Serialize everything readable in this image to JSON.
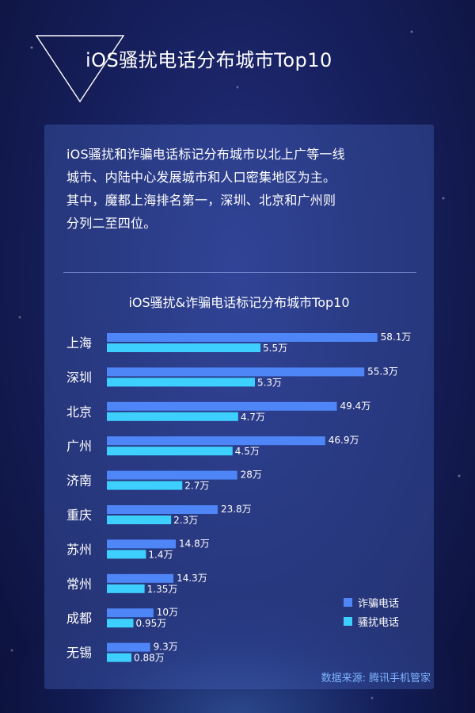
{
  "page": {
    "title": "iOS骚扰电话分布城市Top10",
    "intro_lines": [
      "iOS骚扰和诈骗电话标记分布城市以北上广等一线",
      "城市、内陆中心发展城市和人口密集地区为主。",
      "其中，魔都上海排名第一，深圳、北京和广州则",
      "分列二至四位。"
    ],
    "source_label": "数据来源:",
    "source_name": "腾讯手机管家"
  },
  "colors": {
    "fraud": "#4f86f7",
    "harass": "#3dd0ff",
    "background": "#17205e",
    "card": "#3b56a8"
  },
  "chart_data": {
    "type": "bar",
    "orientation": "horizontal",
    "title": "iOS骚扰&诈骗电话标记分布城市Top10",
    "categories": [
      "上海",
      "深圳",
      "北京",
      "广州",
      "济南",
      "重庆",
      "苏州",
      "常州",
      "成都",
      "无锡"
    ],
    "series": [
      {
        "name": "诈骗电话",
        "values": [
          58.1,
          55.3,
          49.4,
          46.9,
          28,
          23.8,
          14.8,
          14.3,
          10,
          9.3
        ],
        "labels": [
          "58.1万",
          "55.3万",
          "49.4万",
          "46.9万",
          "28万",
          "23.8万",
          "14.8万",
          "14.3万",
          "10万",
          "9.3万"
        ]
      },
      {
        "name": "骚扰电话",
        "values": [
          5.5,
          5.3,
          4.7,
          4.5,
          2.7,
          2.3,
          1.4,
          1.35,
          0.95,
          0.88
        ],
        "labels": [
          "5.5万",
          "5.3万",
          "4.7万",
          "4.5万",
          "2.7万",
          "2.3万",
          "1.4万",
          "1.35万",
          "0.95万",
          "0.88万"
        ]
      }
    ],
    "legend_position": "bottom-right",
    "grid": false
  }
}
